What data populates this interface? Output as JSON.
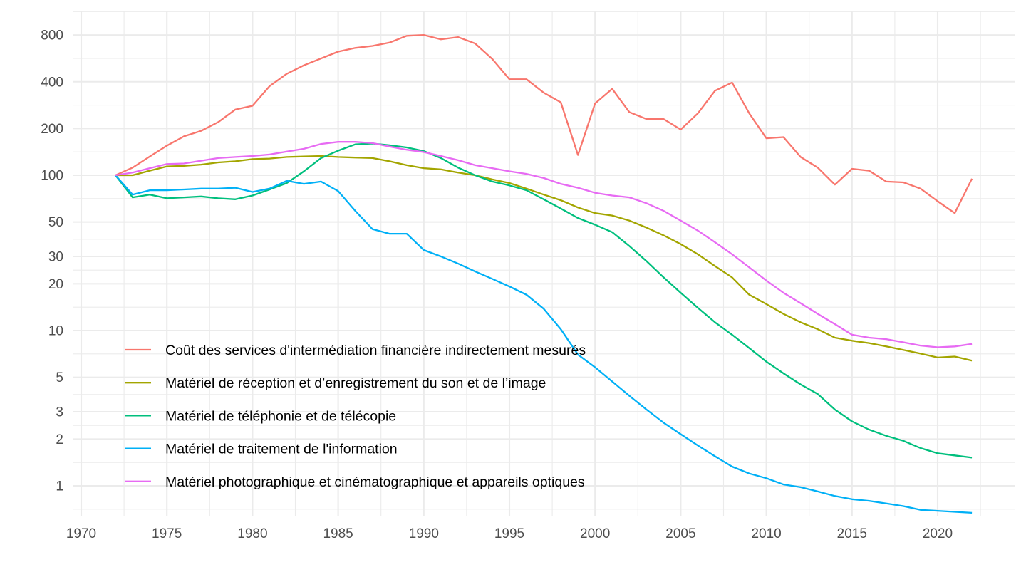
{
  "chart_data": {
    "type": "line",
    "title": "",
    "xlabel": "",
    "ylabel": "",
    "x_scale": "linear",
    "y_scale": "log10",
    "xlim": [
      1969.6,
      2024.6
    ],
    "ylim": [
      0.72,
      1050
    ],
    "grid": true,
    "x_ticks": [
      1970,
      1975,
      1980,
      1985,
      1990,
      1995,
      2000,
      2005,
      2010,
      2015,
      2020
    ],
    "x_tick_labels": [
      "1970",
      "1975",
      "1980",
      "1985",
      "1990",
      "1995",
      "2000",
      "2005",
      "2010",
      "2015",
      "2020"
    ],
    "y_ticks": [
      1,
      2,
      3,
      5,
      10,
      20,
      30,
      50,
      100,
      200,
      400,
      800
    ],
    "y_tick_labels": [
      "1",
      "2",
      "3",
      "5",
      "10",
      "20",
      "30",
      "50",
      "100",
      "200",
      "400",
      "800"
    ],
    "legend_position": "inside-bottom-left",
    "x": [
      1972,
      1973,
      1974,
      1975,
      1976,
      1977,
      1978,
      1979,
      1980,
      1981,
      1982,
      1983,
      1984,
      1985,
      1986,
      1987,
      1988,
      1989,
      1990,
      1991,
      1992,
      1993,
      1994,
      1995,
      1996,
      1997,
      1998,
      1999,
      2000,
      2001,
      2002,
      2003,
      2004,
      2005,
      2006,
      2007,
      2008,
      2009,
      2010,
      2011,
      2012,
      2013,
      2014,
      2015,
      2016,
      2017,
      2018,
      2019,
      2020,
      2021,
      2022
    ],
    "series": [
      {
        "name": "Coût des services d'intermédiation financière indirectement mesurés",
        "color": "#F8766D",
        "values": [
          100,
          112,
          132,
          155,
          178,
          193,
          220,
          265,
          280,
          375,
          450,
          510,
          565,
          625,
          660,
          680,
          715,
          790,
          800,
          750,
          775,
          705,
          560,
          415,
          415,
          340,
          295,
          135,
          290,
          360,
          255,
          230,
          230,
          197,
          250,
          350,
          395,
          250,
          173,
          176,
          131,
          112,
          87,
          110,
          107,
          91,
          90,
          82,
          68,
          57,
          95
        ]
      },
      {
        "name": "Matériel de réception et d’enregistrement du son et de l’image",
        "color": "#A3A500",
        "values": [
          100,
          100,
          107,
          114,
          115,
          117,
          121,
          123,
          127,
          128,
          131,
          132,
          133,
          131,
          130,
          129,
          123,
          116,
          111,
          109,
          104,
          100,
          94,
          89,
          82,
          75,
          69,
          62,
          57,
          55,
          51,
          46,
          41,
          36,
          31,
          26,
          22,
          17,
          14.8,
          12.8,
          11.3,
          10.2,
          9.0,
          8.6,
          8.3,
          7.9,
          7.5,
          7.1,
          6.7,
          6.8,
          6.4
        ]
      },
      {
        "name": "Matériel de téléphonie et de télécopie",
        "color": "#00BF7D",
        "values": [
          100,
          72,
          75,
          71,
          72,
          73,
          71,
          70,
          74,
          81,
          89,
          106,
          129,
          144,
          158,
          160,
          156,
          151,
          143,
          129,
          112,
          100,
          91,
          86,
          80,
          70,
          61,
          53,
          48,
          43,
          35,
          28,
          22,
          17.5,
          14,
          11.3,
          9.4,
          7.7,
          6.3,
          5.3,
          4.5,
          3.9,
          3.1,
          2.6,
          2.3,
          2.1,
          1.95,
          1.75,
          1.62,
          1.57,
          1.52
        ]
      },
      {
        "name": "Matériel de traitement de l'information",
        "color": "#00B0F6",
        "values": [
          100,
          75,
          80,
          80,
          81,
          82,
          82,
          83,
          78,
          82,
          92,
          88,
          91,
          79,
          59,
          45,
          42,
          42,
          33,
          30,
          27,
          24,
          21.5,
          19.2,
          17,
          13.8,
          10.2,
          7,
          5.8,
          4.7,
          3.8,
          3.1,
          2.55,
          2.15,
          1.82,
          1.55,
          1.33,
          1.2,
          1.12,
          1.02,
          0.98,
          0.92,
          0.86,
          0.82,
          0.8,
          0.77,
          0.74,
          0.7,
          0.69,
          0.68,
          0.67
        ]
      },
      {
        "name": "Matériel photographique et cinématographique et appareils optiques",
        "color": "#E76BF3",
        "values": [
          100,
          104,
          111,
          118,
          119,
          124,
          129,
          131,
          133,
          136,
          142,
          148,
          159,
          164,
          164,
          161,
          153,
          146,
          141,
          133,
          125,
          116,
          111,
          106,
          102,
          96,
          88,
          83,
          77,
          74,
          72,
          66,
          59,
          51,
          44,
          37,
          31,
          25.5,
          21,
          17.5,
          15,
          12.8,
          11,
          9.4,
          9.0,
          8.8,
          8.4,
          8.0,
          7.8,
          7.9,
          8.2
        ]
      }
    ]
  }
}
